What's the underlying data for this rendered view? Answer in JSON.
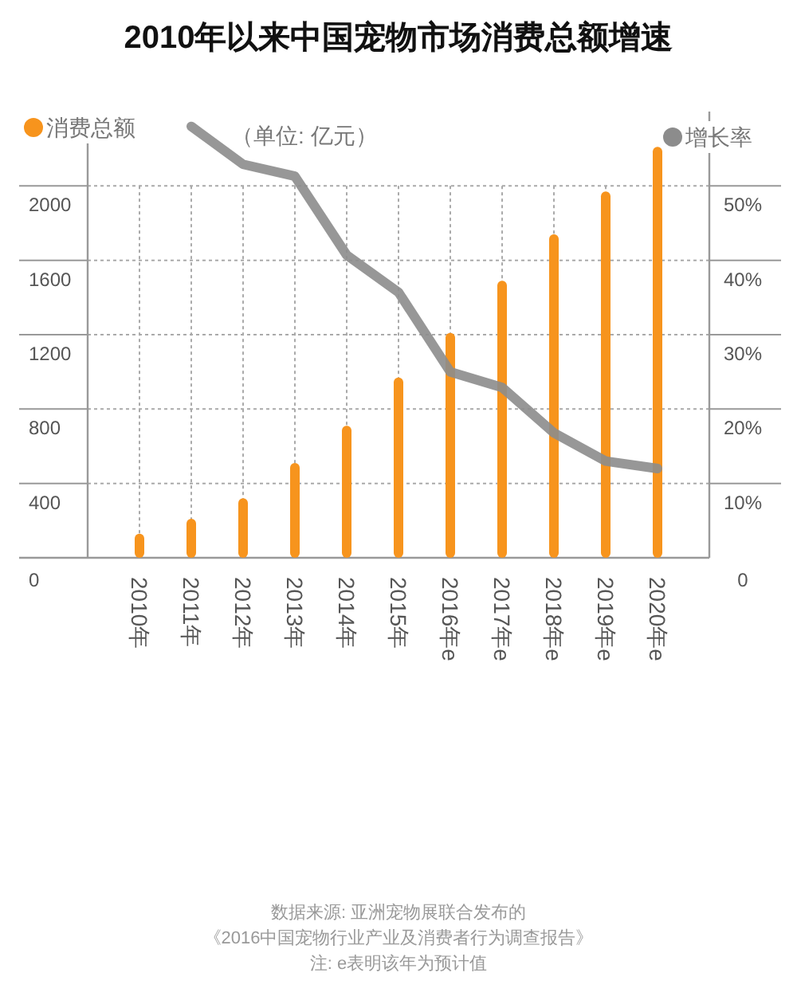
{
  "chart_data": {
    "type": "bar",
    "title": "2010年以来中国宠物市场消费总额增速",
    "categories": [
      "2010年",
      "2011年",
      "2012年",
      "2013年",
      "2014年",
      "2015年",
      "2016年e",
      "2017年e",
      "2018年e",
      "2019年e",
      "2020年e"
    ],
    "series": [
      {
        "name": "消费总额",
        "color": "#f7941d",
        "values": [
          130,
          210,
          320,
          510,
          710,
          970,
          1210,
          1490,
          1740,
          1970,
          2210
        ]
      },
      {
        "name": "增长率",
        "type": "line",
        "axis": "y2",
        "color": "#8c8c8c",
        "values": [
          null,
          58.0,
          52.9,
          51.3,
          40.7,
          35.7,
          25.0,
          22.9,
          16.8,
          13.0,
          12.0
        ]
      }
    ],
    "ylim": [
      0,
      2400
    ],
    "yticks": [
      0,
      400,
      800,
      1200,
      1600,
      2000
    ],
    "y2lim": [
      0,
      60
    ],
    "y2ticks": [
      {
        "value": 0,
        "label": "0"
      },
      {
        "value": 10,
        "label": "10%"
      },
      {
        "value": 20,
        "label": "20%"
      },
      {
        "value": 30,
        "label": "30%"
      },
      {
        "value": 40,
        "label": "40%"
      },
      {
        "value": 50,
        "label": "50%"
      }
    ],
    "grid": true,
    "legend": "top",
    "annotations": [
      "（单位: 亿元）",
      "数据来源: 亚洲宠物展联合发布的",
      "《2016中国宠物行业产业及消费者行为调查报告》",
      "注: e表明该年为预计值"
    ]
  }
}
